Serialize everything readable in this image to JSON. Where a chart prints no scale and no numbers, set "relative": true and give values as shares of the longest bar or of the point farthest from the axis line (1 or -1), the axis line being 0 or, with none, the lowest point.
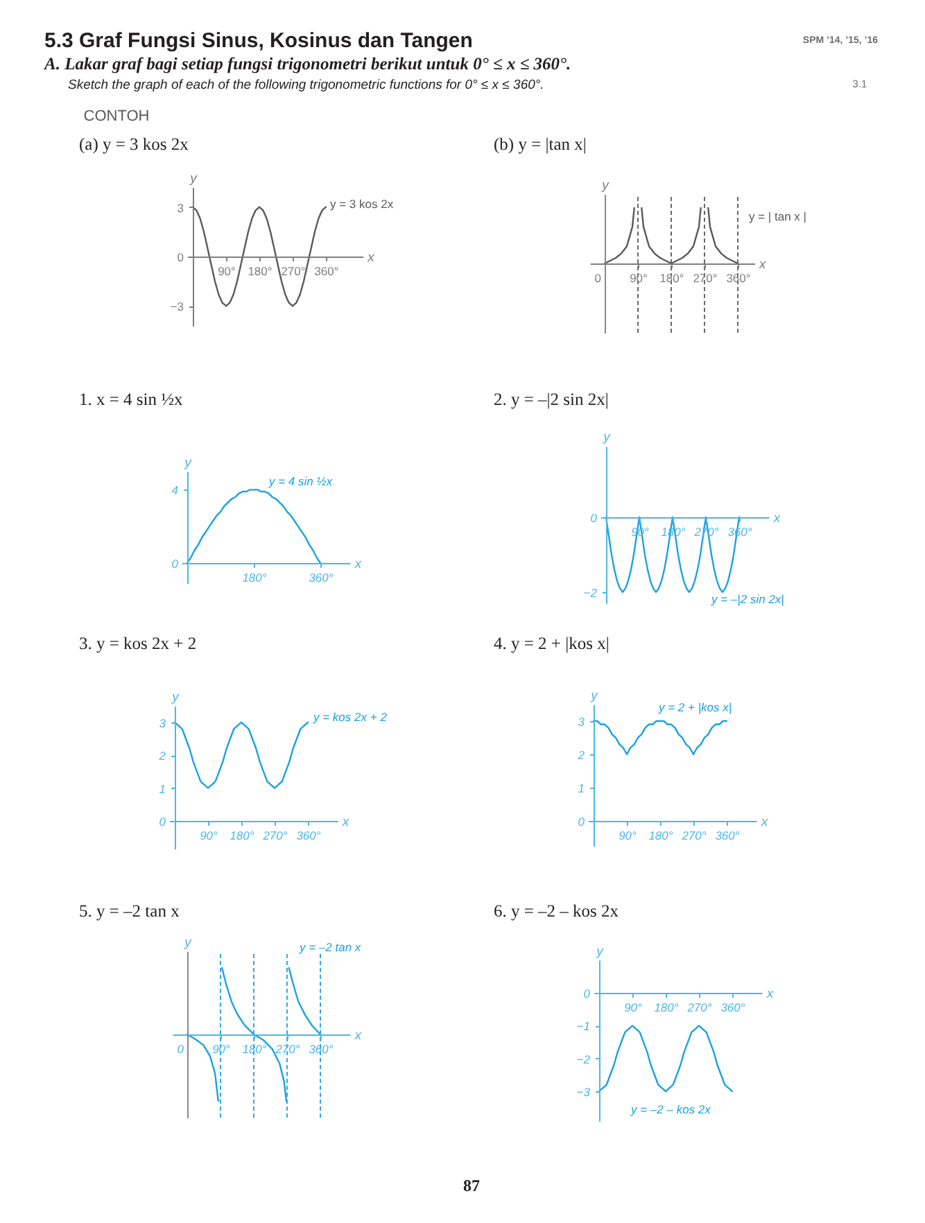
{
  "chart_data": [
    {
      "type": "other",
      "title": "5.3 Graf Fungsi Sinus, Kosinus dan Tangen",
      "subtitle": "A. Lakar graf bagi setiap fungsi trigonometri berikut untuk 0° ≤ x ≤ 360°.",
      "annotations": [
        "Sketch the graph of each of the following trigonometric functions for 0° ≤ x ≤ 360°.",
        "SPM ’14, ’15, ’16",
        "3.1",
        "CONTOH",
        "87"
      ]
    },
    {
      "type": "line",
      "title": "(a) y = 3 kos 2x",
      "xlabel": "x",
      "ylabel": "y",
      "x": [
        0,
        10,
        20,
        30,
        40,
        50,
        60,
        70,
        80,
        90,
        100,
        110,
        120,
        130,
        140,
        150,
        160,
        170,
        180,
        190,
        200,
        210,
        220,
        230,
        240,
        250,
        260,
        270,
        280,
        290,
        300,
        310,
        320,
        330,
        340,
        350,
        360
      ],
      "series": [
        {
          "name": "y = 3 kos 2x",
          "color": "#58595b",
          "values": [
            3,
            2.8,
            2.3,
            1.5,
            0.5,
            -0.5,
            -1.5,
            -2.3,
            -2.8,
            -3,
            -2.8,
            -2.3,
            -1.5,
            -0.5,
            0.5,
            1.5,
            2.3,
            2.8,
            3,
            2.8,
            2.3,
            1.5,
            0.5,
            -0.5,
            -1.5,
            -2.3,
            -2.8,
            -3,
            -2.8,
            -2.3,
            -1.5,
            -0.5,
            0.5,
            1.5,
            2.3,
            2.8,
            3
          ]
        }
      ],
      "xlim": [
        -15,
        460
      ],
      "ylim": [
        -4.2,
        4.2
      ],
      "xticks": [
        {
          "value": 90,
          "label": "90°"
        },
        {
          "value": 180,
          "label": "180°"
        },
        {
          "value": 270,
          "label": "270°"
        },
        {
          "value": 360,
          "label": "360°"
        }
      ],
      "yticks": [
        -3,
        0,
        3
      ]
    },
    {
      "type": "line",
      "title": "(b) y = |tan x|",
      "xlabel": "x",
      "ylabel": "y",
      "relative": true,
      "x": [
        0,
        15,
        30,
        45,
        60,
        75,
        80,
        90,
        100,
        105,
        120,
        135,
        150,
        165,
        180,
        195,
        210,
        225,
        240,
        255,
        260,
        270,
        280,
        285,
        300,
        315,
        330,
        345,
        360
      ],
      "series": [
        {
          "name": "y = | tan x |",
          "color": "#58595b",
          "values": [
            0,
            0.05,
            0.1,
            0.18,
            0.31,
            0.66,
            1,
            null,
            1,
            0.66,
            0.31,
            0.18,
            0.1,
            0.05,
            0,
            0.05,
            0.1,
            0.18,
            0.31,
            0.66,
            1,
            null,
            1,
            0.66,
            0.31,
            0.18,
            0.1,
            0.05,
            0
          ]
        }
      ],
      "xlim": [
        -40,
        405
      ],
      "xticks": [
        0,
        {
          "value": 90,
          "label": "90°"
        },
        {
          "value": 180,
          "label": "180°"
        },
        {
          "value": 270,
          "label": "270°"
        },
        {
          "value": 360,
          "label": "360°"
        }
      ],
      "ref_lines": [
        {
          "axis": "x",
          "value": 90,
          "line_style": "dashed",
          "color": "#58595b"
        },
        {
          "axis": "x",
          "value": 180,
          "line_style": "dashed",
          "color": "#58595b"
        },
        {
          "axis": "x",
          "value": 270,
          "line_style": "dashed",
          "color": "#58595b"
        },
        {
          "axis": "x",
          "value": 360,
          "line_style": "dashed",
          "color": "#58595b"
        }
      ]
    },
    {
      "type": "line",
      "title": "1. x = 4 sin ½x",
      "xlabel": "x",
      "ylabel": "y",
      "x": [
        0,
        10,
        20,
        30,
        40,
        50,
        60,
        70,
        80,
        90,
        100,
        110,
        120,
        130,
        140,
        150,
        160,
        170,
        180,
        190,
        200,
        210,
        220,
        230,
        240,
        250,
        260,
        270,
        280,
        290,
        300,
        310,
        320,
        330,
        340,
        350,
        360
      ],
      "series": [
        {
          "name": "y = 4 sin ½x",
          "color": "#1ba1e2",
          "values": [
            0,
            0.3,
            0.7,
            1,
            1.4,
            1.7,
            2,
            2.3,
            2.6,
            2.8,
            3.1,
            3.3,
            3.5,
            3.6,
            3.8,
            3.9,
            3.9,
            4,
            4,
            4,
            3.9,
            3.9,
            3.8,
            3.6,
            3.5,
            3.3,
            3.1,
            2.8,
            2.6,
            2.3,
            2,
            1.7,
            1.4,
            1,
            0.7,
            0.3,
            0
          ]
        }
      ],
      "xlim": [
        -15,
        440
      ],
      "ylim": [
        -1.1,
        5
      ],
      "xticks": [
        {
          "value": 180,
          "label": "180°"
        },
        {
          "value": 360,
          "label": "360°"
        }
      ],
      "yticks": [
        0,
        4
      ]
    },
    {
      "type": "line",
      "title": "2. y = –|2 sin 2x|",
      "xlabel": "x",
      "ylabel": "y",
      "x": [
        0,
        7.5,
        15,
        22.5,
        30,
        37.5,
        45,
        52.5,
        60,
        67.5,
        75,
        82.5,
        90,
        97.5,
        105,
        112.5,
        120,
        127.5,
        135,
        142.5,
        150,
        157.5,
        165,
        172.5,
        180,
        187.5,
        195,
        202.5,
        210,
        217.5,
        225,
        232.5,
        240,
        247.5,
        255,
        262.5,
        270,
        277.5,
        285,
        292.5,
        300,
        307.5,
        315,
        322.5,
        330,
        337.5,
        345,
        352.5,
        360
      ],
      "series": [
        {
          "name": "y = –|2 sin 2x|",
          "color": "#1ba1e2",
          "values": [
            0,
            -0.5,
            -1,
            -1.4,
            -1.7,
            -1.9,
            -2,
            -1.9,
            -1.7,
            -1.4,
            -1,
            -0.5,
            0,
            -0.5,
            -1,
            -1.4,
            -1.7,
            -1.9,
            -2,
            -1.9,
            -1.7,
            -1.4,
            -1,
            -0.5,
            0,
            -0.5,
            -1,
            -1.4,
            -1.7,
            -1.9,
            -2,
            -1.9,
            -1.7,
            -1.4,
            -1,
            -0.5,
            0,
            -0.5,
            -1,
            -1.4,
            -1.7,
            -1.9,
            -2,
            -1.9,
            -1.7,
            -1.4,
            -1,
            -0.5,
            0
          ]
        }
      ],
      "xlim": [
        -15,
        440
      ],
      "ylim": [
        -2.3,
        1.9
      ],
      "xticks": [
        {
          "value": 90,
          "label": "90°"
        },
        {
          "value": 180,
          "label": "180°"
        },
        {
          "value": 270,
          "label": "270°"
        },
        {
          "value": 360,
          "label": "360°"
        }
      ],
      "yticks": [
        -2,
        0
      ]
    },
    {
      "type": "line",
      "title": "3. y = kos 2x + 2",
      "xlabel": "x",
      "ylabel": "y",
      "x": [
        0,
        10,
        20,
        30,
        40,
        50,
        60,
        70,
        80,
        90,
        100,
        110,
        120,
        130,
        140,
        150,
        160,
        170,
        180,
        190,
        200,
        210,
        220,
        230,
        240,
        250,
        260,
        270,
        280,
        290,
        300,
        310,
        320,
        330,
        340,
        350,
        360
      ],
      "series": [
        {
          "name": "y = kos 2x + 2",
          "color": "#1ba1e2",
          "values": [
            3,
            2.9,
            2.8,
            2.5,
            2.2,
            1.8,
            1.5,
            1.2,
            1.1,
            1,
            1.1,
            1.2,
            1.5,
            1.8,
            2.2,
            2.5,
            2.8,
            2.9,
            3,
            2.9,
            2.8,
            2.5,
            2.2,
            1.8,
            1.5,
            1.2,
            1.1,
            1,
            1.1,
            1.2,
            1.5,
            1.8,
            2.2,
            2.5,
            2.8,
            2.9,
            3
          ]
        }
      ],
      "xlim": [
        -15,
        440
      ],
      "ylim": [
        -0.85,
        3.5
      ],
      "xticks": [
        {
          "value": 90,
          "label": "90°"
        },
        {
          "value": 180,
          "label": "180°"
        },
        {
          "value": 270,
          "label": "270°"
        },
        {
          "value": 360,
          "label": "360°"
        }
      ],
      "yticks": [
        0,
        1,
        2,
        3
      ]
    },
    {
      "type": "line",
      "title": "4. y = 2 + |kos x|",
      "xlabel": "x",
      "ylabel": "y",
      "x": [
        0,
        10,
        20,
        30,
        40,
        50,
        60,
        70,
        80,
        90,
        100,
        110,
        120,
        130,
        140,
        150,
        160,
        170,
        180,
        190,
        200,
        210,
        220,
        230,
        240,
        250,
        260,
        270,
        280,
        290,
        300,
        310,
        320,
        330,
        340,
        350,
        360
      ],
      "series": [
        {
          "name": "y = 2 + |kos x|",
          "color": "#1ba1e2",
          "values": [
            3,
            3,
            2.9,
            2.9,
            2.8,
            2.6,
            2.5,
            2.3,
            2.2,
            2,
            2.2,
            2.3,
            2.5,
            2.6,
            2.8,
            2.9,
            2.9,
            3,
            3,
            3,
            2.9,
            2.9,
            2.8,
            2.6,
            2.5,
            2.3,
            2.2,
            2,
            2.2,
            2.3,
            2.5,
            2.6,
            2.8,
            2.9,
            2.9,
            3,
            3
          ]
        }
      ],
      "xlim": [
        -15,
        440
      ],
      "ylim": [
        -0.75,
        3.5
      ],
      "xticks": [
        {
          "value": 90,
          "label": "90°"
        },
        {
          "value": 180,
          "label": "180°"
        },
        {
          "value": 270,
          "label": "270°"
        },
        {
          "value": 360,
          "label": "360°"
        }
      ],
      "yticks": [
        0,
        1,
        2,
        3
      ]
    },
    {
      "type": "line",
      "title": "5. y = –2 tan x",
      "xlabel": "x",
      "ylabel": "y",
      "relative": true,
      "x": [
        0,
        19,
        44,
        62,
        75,
        84,
        90,
        94,
        105,
        120,
        135,
        155,
        180,
        205,
        230,
        250,
        262,
        268,
        270,
        275,
        287,
        300,
        320,
        338,
        360
      ],
      "series": [
        {
          "name": "y = –2 tan x",
          "color": "#1ba1e2",
          "values": [
            0,
            -0.06,
            -0.16,
            -0.33,
            -0.58,
            -1,
            null,
            1,
            0.76,
            0.49,
            0.31,
            0.14,
            0,
            -0.08,
            -0.22,
            -0.44,
            -0.71,
            -1,
            null,
            1,
            0.75,
            0.5,
            0.28,
            0.13,
            0
          ]
        }
      ],
      "xlim": [
        -40,
        440
      ],
      "xticks": [
        0,
        {
          "value": 90,
          "label": "90°"
        },
        {
          "value": 180,
          "label": "180°"
        },
        {
          "value": 270,
          "label": "270°"
        },
        {
          "value": 360,
          "label": "360°"
        }
      ],
      "ref_lines": [
        {
          "axis": "x",
          "value": 90,
          "line_style": "dashed",
          "color": "#1ba1e2"
        },
        {
          "axis": "x",
          "value": 180,
          "line_style": "dashed",
          "color": "#1ba1e2"
        },
        {
          "axis": "x",
          "value": 270,
          "line_style": "dashed",
          "color": "#1ba1e2"
        },
        {
          "axis": "x",
          "value": 360,
          "line_style": "dashed",
          "color": "#1ba1e2"
        }
      ]
    },
    {
      "type": "line",
      "title": "6. y = –2 – kos 2x",
      "xlabel": "x",
      "ylabel": "y",
      "x": [
        0,
        10,
        20,
        30,
        40,
        50,
        60,
        70,
        80,
        90,
        100,
        110,
        120,
        130,
        140,
        150,
        160,
        170,
        180,
        190,
        200,
        210,
        220,
        230,
        240,
        250,
        260,
        270,
        280,
        290,
        300,
        310,
        320,
        330,
        340,
        350,
        360
      ],
      "series": [
        {
          "name": "y = –2 – kos 2x",
          "color": "#1ba1e2",
          "values": [
            -3,
            -2.9,
            -2.8,
            -2.5,
            -2.2,
            -1.8,
            -1.5,
            -1.2,
            -1.1,
            -1,
            -1.1,
            -1.2,
            -1.5,
            -1.8,
            -2.2,
            -2.5,
            -2.8,
            -2.9,
            -3,
            -2.9,
            -2.8,
            -2.5,
            -2.2,
            -1.8,
            -1.5,
            -1.2,
            -1.1,
            -1,
            -1.1,
            -1.2,
            -1.5,
            -1.8,
            -2.2,
            -2.5,
            -2.8,
            -2.9,
            -3
          ]
        }
      ],
      "xlim": [
        -15,
        440
      ],
      "ylim": [
        -3.9,
        1
      ],
      "xticks": [
        {
          "value": 90,
          "label": "90°"
        },
        {
          "value": 180,
          "label": "180°"
        },
        {
          "value": 270,
          "label": "270°"
        },
        {
          "value": 360,
          "label": "360°"
        }
      ],
      "yticks": [
        -3,
        -2,
        -1,
        0
      ]
    }
  ]
}
